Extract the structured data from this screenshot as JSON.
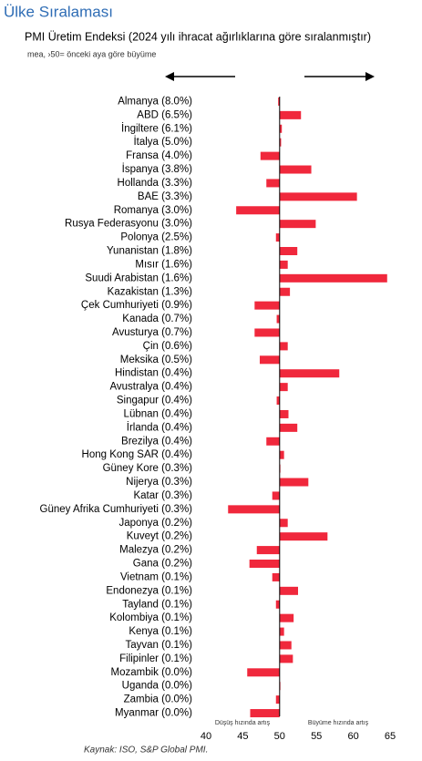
{
  "chart_data": {
    "type": "bar",
    "orientation": "horizontal",
    "title": "Ülke Sıralaması",
    "subtitle": "PMI Üretim Endeksi (2024 yılı ihracat ağırlıklarına göre sıralanmıştır)",
    "note": "mea, ›50= önceki aya göre büyüme",
    "left_label": "Düşüş hızında artış",
    "right_label": "Büyüme hızında artış",
    "source": "Kaynak: ISO, S&P Global PMI.",
    "categories": [
      "Almanya (8.0%)",
      "ABD (6.5%)",
      "İngiltere (6.1%)",
      "İtalya (5.0%)",
      "Fransa (4.0%)",
      "İspanya (3.8%)",
      "Hollanda (3.3%)",
      "BAE (3.3%)",
      "Romanya (3.0%)",
      "Rusya Federasyonu (3.0%)",
      "Polonya (2.5%)",
      "Yunanistan (1.8%)",
      "Mısır (1.6%)",
      "Suudi Arabistan (1.6%)",
      "Kazakistan (1.3%)",
      "Çek Cumhuriyeti (0.9%)",
      "Kanada (0.7%)",
      "Avusturya (0.7%)",
      "Çin (0.6%)",
      "Meksika (0.5%)",
      "Hindistan (0.4%)",
      "Avustralya (0.4%)",
      "Singapur (0.4%)",
      "Lübnan (0.4%)",
      "İrlanda (0.4%)",
      "Brezilya (0.4%)",
      "Hong Kong SAR (0.4%)",
      "Güney Kore (0.3%)",
      "Nijerya (0.3%)",
      "Katar (0.3%)",
      "Güney Afrika Cumhuriyeti (0.3%)",
      "Japonya (0.2%)",
      "Kuveyt (0.2%)",
      "Malezya (0.2%)",
      "Gana (0.2%)",
      "Vietnam (0.1%)",
      "Endonezya (0.1%)",
      "Tayland (0.1%)",
      "Kolombiya (0.1%)",
      "Kenya (0.1%)",
      "Tayvan (0.1%)",
      "Filipinler (0.1%)",
      "Mozambik (0.0%)",
      "Uganda (0.0%)",
      "Zambia (0.0%)",
      "Myanmar (0.0%)"
    ],
    "values": [
      49.8,
      52.9,
      50.3,
      50.2,
      47.4,
      54.3,
      48.2,
      60.5,
      44.1,
      54.9,
      49.5,
      52.4,
      51.1,
      64.6,
      51.4,
      46.6,
      49.6,
      46.6,
      51.1,
      47.3,
      58.1,
      51.1,
      49.6,
      51.2,
      52.4,
      48.2,
      50.6,
      50.1,
      53.9,
      49.0,
      43.0,
      51.1,
      56.5,
      46.9,
      45.9,
      49.0,
      52.5,
      49.5,
      51.9,
      50.6,
      51.6,
      51.8,
      45.6,
      50.1,
      49.5,
      46.0
    ],
    "color": "#f0283c",
    "baseline": 50,
    "xlim": [
      40,
      65
    ],
    "xticks": [
      40,
      45,
      50,
      55,
      60,
      65
    ]
  }
}
